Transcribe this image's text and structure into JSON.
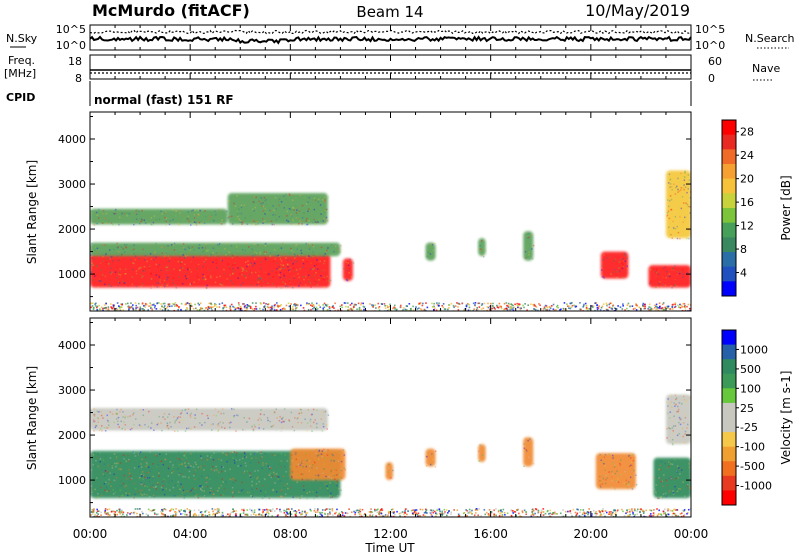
{
  "header": {
    "station": "McMurdo (fitACF)",
    "beam": "Beam 14",
    "date": "10/May/2019"
  },
  "noise_panel": {
    "left_label": "N.Sky",
    "left_ticks": [
      "10^5",
      "10^0"
    ],
    "right_ticks": [
      "10^5",
      "10^0"
    ],
    "right_label": "N.Search"
  },
  "freq_panel": {
    "left_label_line1": "Freq.",
    "left_label_line2": "[MHz]",
    "left_ticks": [
      "18",
      "8"
    ],
    "right_ticks": [
      "60",
      "0"
    ],
    "right_label": "Nave"
  },
  "cpid_panel": {
    "label": "CPID",
    "text": "normal (fast) 151 RF"
  },
  "time_axis": {
    "label": "Time UT",
    "ticks": [
      "00:00",
      "04:00",
      "08:00",
      "12:00",
      "16:00",
      "20:00",
      "00:00"
    ],
    "range_hours": [
      0,
      24
    ]
  },
  "colors": {
    "power": [
      "#0000ff",
      "#2050c0",
      "#2a6ea8",
      "#3a8860",
      "#47a05a",
      "#7cc43a",
      "#c8d23a",
      "#f5c23a",
      "#f7a032",
      "#f06a28",
      "#e82a22",
      "#ff0000"
    ],
    "velocity": [
      "#ff0000",
      "#e83a20",
      "#f07020",
      "#f0a030",
      "#f5c84a",
      "#c8c8c0",
      "#c8c8c0",
      "#66c83a",
      "#3c9a58",
      "#2f8a60",
      "#2660a8",
      "#0000ff"
    ],
    "velocity_main": {
      "ground_green": "#2f8a5a",
      "grey": "#c8c8c0",
      "orange": "#f08a30",
      "green_light": "#7cc43a"
    },
    "power_main": {
      "red": "#ff1a1a",
      "orange": "#f07a28",
      "yellow": "#f5c83a",
      "green": "#5aa05a",
      "blue": "#2050c0"
    }
  },
  "chart_data": [
    {
      "type": "heatmap",
      "panel": "power",
      "ylabel": "Slant Range [km]",
      "ylim": [
        180,
        4600
      ],
      "y_ticks": [
        1000,
        2000,
        3000,
        4000
      ],
      "colorbar": {
        "label": "Power [dB]",
        "ticks": [
          4,
          8,
          12,
          16,
          20,
          24,
          28
        ],
        "range": [
          0,
          30
        ]
      },
      "blobs": [
        {
          "t": [
            0.0,
            9.6
          ],
          "r": [
            700,
            1450
          ],
          "level": "red"
        },
        {
          "t": [
            0.0,
            10.0
          ],
          "r": [
            1400,
            1700
          ],
          "level": "green"
        },
        {
          "t": [
            0.0,
            5.5
          ],
          "r": [
            2100,
            2450
          ],
          "level": "green"
        },
        {
          "t": [
            5.5,
            9.5
          ],
          "r": [
            2100,
            2800
          ],
          "level": "green"
        },
        {
          "t": [
            10.1,
            10.5
          ],
          "r": [
            850,
            1350
          ],
          "level": "red"
        },
        {
          "t": [
            13.4,
            13.8
          ],
          "r": [
            1300,
            1700
          ],
          "level": "green"
        },
        {
          "t": [
            15.5,
            15.8
          ],
          "r": [
            1400,
            1800
          ],
          "level": "green"
        },
        {
          "t": [
            17.3,
            17.7
          ],
          "r": [
            1300,
            1950
          ],
          "level": "green"
        },
        {
          "t": [
            20.4,
            21.5
          ],
          "r": [
            900,
            1500
          ],
          "level": "red"
        },
        {
          "t": [
            22.3,
            24.0
          ],
          "r": [
            700,
            1200
          ],
          "level": "red"
        },
        {
          "t": [
            23.0,
            24.0
          ],
          "r": [
            1800,
            3300
          ],
          "level": "yellow"
        }
      ]
    },
    {
      "type": "heatmap",
      "panel": "velocity",
      "ylabel": "Slant Range [km]",
      "ylim": [
        180,
        4600
      ],
      "y_ticks": [
        1000,
        2000,
        3000,
        4000
      ],
      "colorbar": {
        "label": "Velocity [m s-1]",
        "ticks": [
          1000,
          500,
          100,
          25,
          -25,
          -100,
          -500,
          -1000
        ],
        "range": [
          -1200,
          1200
        ]
      },
      "blobs": [
        {
          "t": [
            0.0,
            10.0
          ],
          "r": [
            600,
            1650
          ],
          "level": "ground_green"
        },
        {
          "t": [
            0.0,
            9.5
          ],
          "r": [
            2100,
            2600
          ],
          "level": "grey"
        },
        {
          "t": [
            8.0,
            10.2
          ],
          "r": [
            1000,
            1700
          ],
          "level": "orange"
        },
        {
          "t": [
            11.8,
            12.1
          ],
          "r": [
            1000,
            1400
          ],
          "level": "orange"
        },
        {
          "t": [
            13.4,
            13.8
          ],
          "r": [
            1300,
            1700
          ],
          "level": "orange"
        },
        {
          "t": [
            15.5,
            15.8
          ],
          "r": [
            1400,
            1800
          ],
          "level": "orange"
        },
        {
          "t": [
            17.3,
            17.7
          ],
          "r": [
            1300,
            1950
          ],
          "level": "orange"
        },
        {
          "t": [
            20.2,
            21.8
          ],
          "r": [
            800,
            1600
          ],
          "level": "orange"
        },
        {
          "t": [
            22.5,
            24.0
          ],
          "r": [
            600,
            1500
          ],
          "level": "ground_green"
        },
        {
          "t": [
            23.0,
            24.0
          ],
          "r": [
            1800,
            2900
          ],
          "level": "grey"
        }
      ]
    }
  ]
}
